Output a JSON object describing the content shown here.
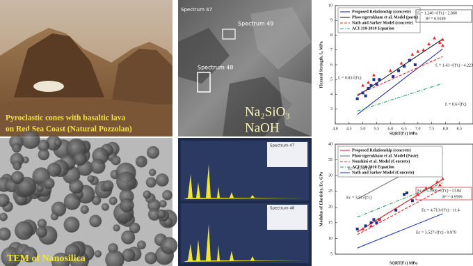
{
  "photo": {
    "caption_line1": "Pyroclastic cones with basaltic lava",
    "caption_line2": "on Red Sea Coast (Natural Pozzolan)"
  },
  "sem": {
    "spectrum_a": "Spectrum 47",
    "spectrum_b": "Spectrum 49",
    "spectrum_c": "Spectrum 48",
    "label1": "Na₂SiO₃",
    "label2": "NaOH"
  },
  "tem": {
    "caption": "TEM of Nanosilica"
  },
  "eds": {
    "top_title": "Spectrum 47",
    "bottom_title": "Spectrum 48"
  },
  "chart_data": [
    {
      "type": "scatter",
      "x_label": "SQRT(f′c) MPa",
      "y_label": "Flexural Strength, fᵣ, MPa",
      "xlim": [
        4,
        9
      ],
      "ylim": [
        2,
        10
      ],
      "xticks": [
        {
          "value": 4,
          "label": "4.0"
        },
        {
          "value": 4.5,
          "label": "4.5"
        },
        {
          "value": 5,
          "label": "5.0"
        },
        {
          "value": 5.5,
          "label": "5.5"
        },
        {
          "value": 6,
          "label": "6.0"
        },
        {
          "value": 6.5,
          "label": "6.5"
        },
        {
          "value": 7,
          "label": "7.0"
        },
        {
          "value": 7.5,
          "label": "7.5"
        },
        {
          "value": 8,
          "label": "8.0"
        },
        {
          "value": 8.5,
          "label": "8.5"
        }
      ],
      "yticks": [
        3,
        4,
        5,
        6,
        7,
        8,
        9,
        10
      ],
      "series": [
        {
          "name": "Proposed Relationship (concrete)",
          "color": "#2a2f9c",
          "style": "solid",
          "x": [
            4.8,
            7.9
          ],
          "values": [
            2.64,
            7.07
          ]
        },
        {
          "name": "Phoo-ngernkham et al. Model (paste)",
          "color": "#222222",
          "style": "solid",
          "x": [
            4.8,
            7.9
          ],
          "values": [
            3.89,
            7.74
          ]
        },
        {
          "name": "Nath and Sarker Model (concrete)",
          "color": "#e0262b",
          "style": "dashed",
          "x": [
            4.8,
            7.9
          ],
          "values": [
            3.98,
            6.56
          ]
        },
        {
          "name": "ACI 318-2010 Equation",
          "color": "#1fa05a",
          "style": "dashdot",
          "x": [
            4.8,
            7.9
          ],
          "values": [
            2.88,
            4.74
          ]
        },
        {
          "color": "#1f2f8f",
          "marker": "square",
          "x": [
            4.8,
            5.0,
            5.1,
            5.2,
            5.3,
            5.4,
            5.5,
            5.6,
            6.1,
            6.3,
            6.5,
            6.7,
            6.9
          ],
          "values": [
            3.7,
            4.1,
            3.9,
            4.4,
            4.6,
            5.0,
            4.7,
            5.0,
            5.2,
            5.6,
            5.9,
            6.3,
            6.0
          ]
        },
        {
          "color": "#e8262b",
          "marker": "triangle",
          "x": [
            5.0,
            5.2,
            5.4,
            6.0,
            6.4,
            6.8,
            7.0,
            7.2,
            7.4,
            7.6,
            7.8,
            7.9,
            7.9
          ],
          "values": [
            4.6,
            4.8,
            5.3,
            5.6,
            6.1,
            6.7,
            6.9,
            7.0,
            7.4,
            7.8,
            7.5,
            7.3,
            7.7
          ]
        }
      ],
      "annotations": [
        "fᵣ = 1.240·√(f′c) - 2.060",
        "R² = 0.9189",
        "fᵣ = 0.83√(f′c)",
        "fᵣ = 1.43·√(f′c) - 4.223",
        "fᵣ = 0.6√(f′c)"
      ]
    },
    {
      "type": "scatter",
      "x_label": "SQRT(f′c) MPa",
      "y_label": "Modulus of Elasticity, Ec, GPa",
      "xlim": [
        4,
        9
      ],
      "ylim": [
        5,
        40
      ],
      "yticks": [
        5,
        10,
        15,
        20,
        25,
        30,
        35,
        40
      ],
      "series": [
        {
          "name": "Proposed Relationship (concrete)",
          "color": "#d81e25",
          "style": "solid",
          "x": [
            4.8,
            7.9
          ],
          "values": [
            12.03,
            28.75
          ]
        },
        {
          "name": "Phoo-ngernkham et al. Model (Paste)",
          "color": "#777777",
          "style": "solid",
          "x": [
            4.8,
            7.9
          ],
          "values": [
            22.56,
            37.13
          ]
        },
        {
          "name": "Noushini et al. Model (Concrete)",
          "color": "#e0262b",
          "style": "dashed",
          "x": [
            4.8,
            7.9
          ],
          "values": [
            11.22,
            25.83
          ]
        },
        {
          "name": "ACI 318-2010 Equation",
          "color": "#1fa05a",
          "style": "dashdot",
          "x": [
            4.8,
            7.9
          ],
          "values": [
            16.8,
            27.7
          ]
        },
        {
          "name": "Nath and Sarker Model (Concrete)",
          "color": "#2a3fbf",
          "style": "solid",
          "x": [
            4.8,
            7.9
          ],
          "values": [
            6.95,
            17.88
          ]
        },
        {
          "color": "#1f2f8f",
          "marker": "square",
          "x": [
            4.8,
            5.1,
            5.3,
            5.4,
            5.5,
            5.6,
            6.2,
            6.5,
            6.6,
            6.8
          ],
          "values": [
            13,
            14,
            15,
            16,
            15,
            16,
            19,
            24,
            24.5,
            22
          ]
        },
        {
          "color": "#e8262b",
          "marker": "triangle",
          "x": [
            5.0,
            5.3,
            5.6,
            7.0,
            7.3,
            7.5,
            7.7,
            7.8,
            7.9
          ],
          "values": [
            13,
            14,
            16,
            24,
            26,
            26,
            28,
            27,
            29
          ]
        }
      ],
      "annotations": [
        "Ec = 5.3906·√(f′c) - 13.84",
        "R² = 0.9599",
        "Ec = 4.7√(f′c)",
        "Ec = 3.51√(f′c)",
        "Ec = 4.713√(f′c) - 11.4",
        "Ec = 3.527√(f′c) - 9.979"
      ]
    }
  ]
}
